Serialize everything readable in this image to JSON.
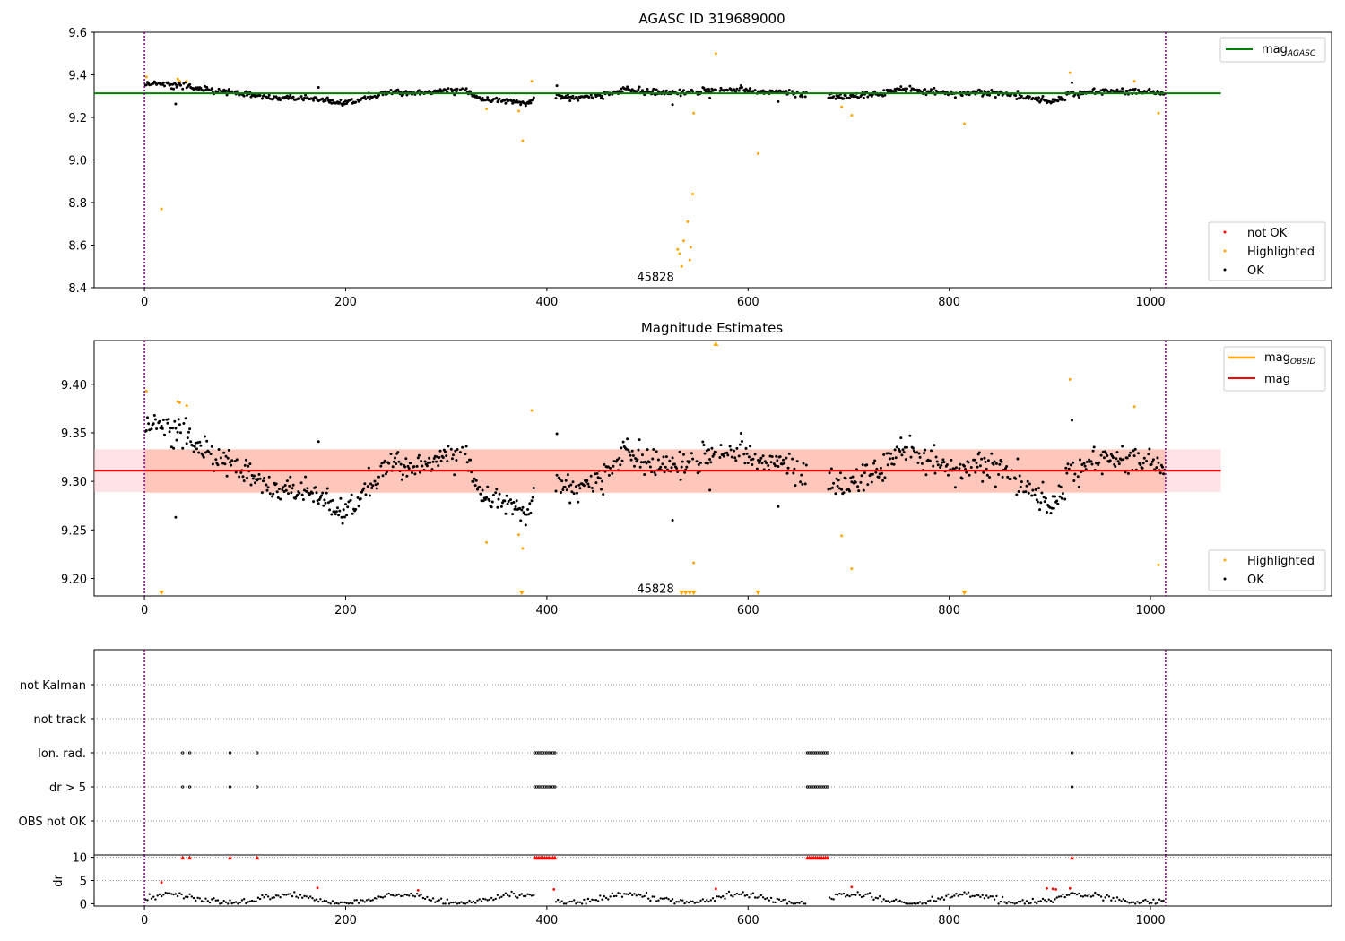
{
  "colors": {
    "ok": "#000000",
    "highlighted": "#ffa500",
    "not_ok": "#ff0000",
    "agasc_line": "#008000",
    "obsid_line": "#ffa500",
    "mag_line": "#ff0000",
    "band_outer": "#ffb6c1",
    "band_inner": "#ffa07a",
    "obs_boundary": "#800080"
  },
  "chart_data": [
    {
      "type": "scatter",
      "title": "AGASC ID 319689000",
      "xlim": [
        -50,
        1180
      ],
      "ylim": [
        8.4,
        9.6
      ],
      "xticks": [
        0,
        200,
        400,
        600,
        800,
        1000
      ],
      "xtick_labels": [
        "0",
        "200",
        "400",
        "600",
        "800",
        "1000"
      ],
      "yticks": [
        8.4,
        8.6,
        8.8,
        9.0,
        9.2,
        9.4,
        9.6
      ],
      "ytick_labels": [
        "8.4",
        "8.6",
        "8.8",
        "9.0",
        "9.2",
        "9.4",
        "9.6"
      ],
      "hlines": [
        {
          "y": 9.313,
          "x": [
            -50,
            1070
          ],
          "name": "mag_AGASC"
        }
      ],
      "vlines": [
        0,
        1015
      ],
      "annotations": [
        {
          "text": "45828",
          "x": 508,
          "y": 8.44
        }
      ],
      "legend_lines": [
        {
          "label": "mag",
          "sub": "AGASC"
        }
      ],
      "legend_points": [
        "not OK",
        "Highlighted",
        "OK"
      ],
      "highlighted": [
        [
          2,
          9.39
        ],
        [
          17,
          8.77
        ],
        [
          33,
          9.38
        ],
        [
          35,
          9.37
        ],
        [
          42,
          9.37
        ],
        [
          340,
          9.24
        ],
        [
          372,
          9.23
        ],
        [
          376,
          9.09
        ],
        [
          385,
          9.37
        ],
        [
          530,
          8.58
        ],
        [
          532,
          8.56
        ],
        [
          534,
          8.5
        ],
        [
          536,
          8.62
        ],
        [
          540,
          8.71
        ],
        [
          542,
          8.53
        ],
        [
          543,
          8.59
        ],
        [
          545,
          8.84
        ],
        [
          546,
          9.22
        ],
        [
          568,
          9.5
        ],
        [
          610,
          9.03
        ],
        [
          693,
          9.25
        ],
        [
          703,
          9.21
        ],
        [
          815,
          9.17
        ],
        [
          920,
          9.41
        ],
        [
          984,
          9.37
        ],
        [
          1008,
          9.22
        ]
      ]
    },
    {
      "type": "scatter",
      "title": "Magnitude Estimates",
      "xlim": [
        -50,
        1180
      ],
      "ylim": [
        9.182,
        9.445
      ],
      "xticks": [
        0,
        200,
        400,
        600,
        800,
        1000
      ],
      "xtick_labels": [
        "0",
        "200",
        "400",
        "600",
        "800",
        "1000"
      ],
      "yticks": [
        9.2,
        9.25,
        9.3,
        9.35,
        9.4
      ],
      "ytick_labels": [
        "9.20",
        "9.25",
        "9.30",
        "9.35",
        "9.40"
      ],
      "hlines": [
        {
          "y": 9.311,
          "x": [
            -50,
            1070
          ],
          "name": "mag"
        }
      ],
      "band_outer": [
        9.289,
        9.333
      ],
      "band_inner": [
        9.288,
        9.333
      ],
      "band_inner_x": [
        0,
        1015
      ],
      "vlines": [
        0,
        1015
      ],
      "annotations": [
        {
          "text": "45828",
          "x": 508,
          "y": 9.187
        }
      ],
      "legend_lines": [
        {
          "label": "mag",
          "sub": "OBSID"
        },
        {
          "label": "mag",
          "sub": ""
        }
      ],
      "legend_points": [
        "Highlighted",
        "OK"
      ],
      "highlighted": [
        [
          2,
          9.393
        ],
        [
          33,
          9.382
        ],
        [
          35,
          9.381
        ],
        [
          42,
          9.378
        ],
        [
          340,
          9.237
        ],
        [
          372,
          9.245
        ],
        [
          376,
          9.231
        ],
        [
          385,
          9.373
        ],
        [
          546,
          9.216
        ],
        [
          693,
          9.244
        ],
        [
          703,
          9.21
        ],
        [
          920,
          9.405
        ],
        [
          984,
          9.377
        ],
        [
          1008,
          9.214
        ]
      ],
      "down_markers": [
        17,
        375,
        534,
        538,
        542,
        546,
        610,
        815
      ],
      "up_markers": [
        568
      ]
    },
    {
      "type": "scatter",
      "xlim": [
        -50,
        1180
      ],
      "categories": [
        "not Kalman",
        "not track",
        "Ion. rad.",
        "dr > 5",
        "OBS not OK"
      ],
      "vlines": [
        0,
        1015
      ],
      "flags": {
        "Ion. rad.": [
          38,
          45,
          85,
          112,
          388,
          390,
          392,
          394,
          396,
          398,
          400,
          402,
          404,
          406,
          408,
          659,
          661,
          663,
          665,
          667,
          669,
          671,
          673,
          675,
          677,
          679,
          922
        ],
        "dr > 5": [
          38,
          45,
          85,
          112,
          388,
          390,
          392,
          394,
          396,
          398,
          400,
          402,
          404,
          406,
          408,
          659,
          661,
          663,
          665,
          667,
          669,
          671,
          673,
          675,
          677,
          679,
          922
        ]
      }
    },
    {
      "type": "scatter",
      "ylabel": "dr",
      "xlim": [
        -50,
        1180
      ],
      "ylim": [
        -0.5,
        10.5
      ],
      "xticks": [
        0,
        200,
        400,
        600,
        800,
        1000
      ],
      "xtick_labels": [
        "0",
        "200",
        "400",
        "600",
        "800",
        "1000"
      ],
      "yticks": [
        0,
        5,
        10
      ],
      "ytick_labels": [
        "0",
        "5",
        "10"
      ],
      "vlines": [
        0,
        1015
      ],
      "clipped_dr": [
        38,
        45,
        85,
        112,
        388,
        390,
        392,
        394,
        396,
        398,
        400,
        402,
        404,
        406,
        408,
        659,
        661,
        663,
        665,
        667,
        669,
        671,
        673,
        675,
        677,
        679,
        922
      ],
      "highlighted_dr": [
        [
          17,
          4.6
        ],
        [
          172,
          3.4
        ],
        [
          272,
          2.9
        ],
        [
          407,
          3.1
        ],
        [
          568,
          3.2
        ],
        [
          703,
          3.6
        ],
        [
          897,
          3.3
        ],
        [
          903,
          3.2
        ],
        [
          906,
          3.1
        ],
        [
          920,
          3.3
        ]
      ]
    }
  ]
}
